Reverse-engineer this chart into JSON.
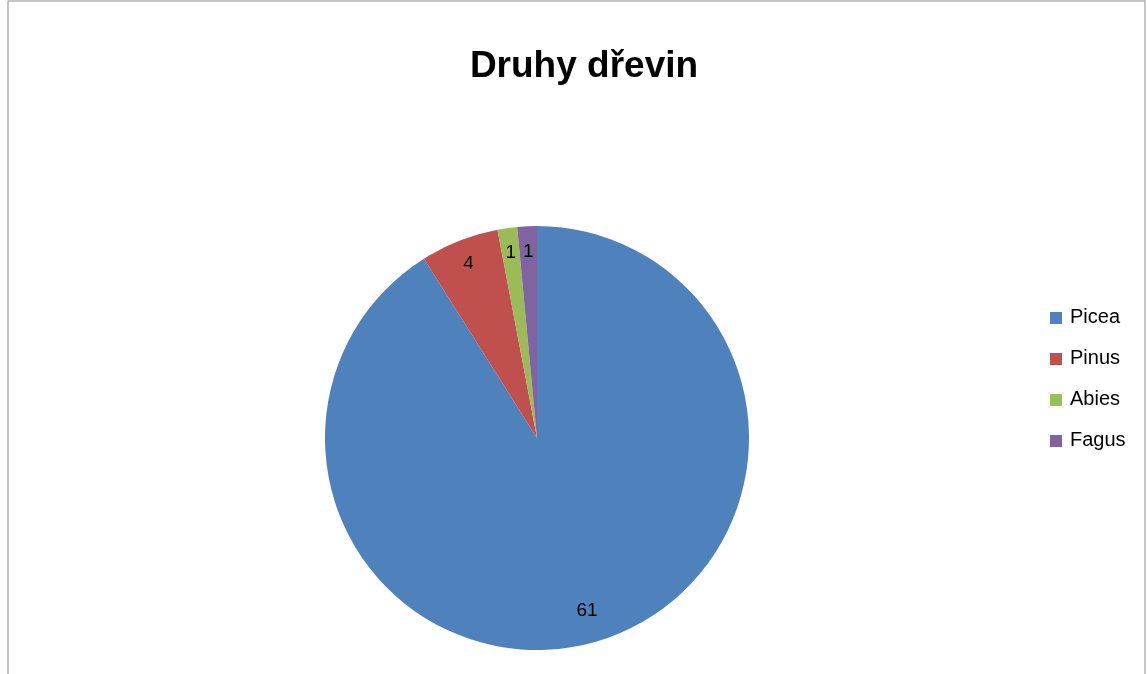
{
  "chart_data": {
    "type": "pie",
    "title": "Druhy dřevin",
    "categories": [
      "Picea",
      "Pinus",
      "Abies",
      "Fagus"
    ],
    "values": [
      61,
      4,
      1,
      1
    ],
    "colors": [
      "#4f81bd",
      "#c0504d",
      "#9bbb59",
      "#8064a2"
    ],
    "data_labels": true,
    "legend": "right"
  }
}
